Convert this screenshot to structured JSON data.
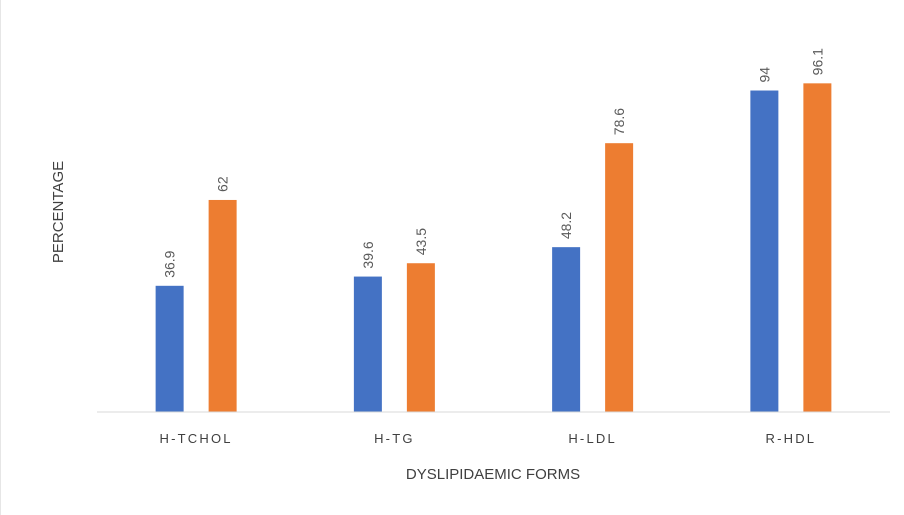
{
  "chart_data": {
    "type": "bar",
    "title": "",
    "xlabel": "DYSLIPIDAEMIC FORMS",
    "ylabel": "PERCENTAGE",
    "categories": [
      "H-TCHOL",
      "H-TG",
      "H-LDL",
      "R-HDL"
    ],
    "series": [
      {
        "values": [
          36.9,
          39.6,
          48.2,
          94
        ],
        "color": "#4472C4"
      },
      {
        "values": [
          62,
          43.5,
          78.6,
          96.1
        ],
        "color": "#ED7D31"
      }
    ],
    "ylim": [
      0,
      100
    ],
    "grid": false,
    "legend": "none",
    "data_labels": true
  }
}
